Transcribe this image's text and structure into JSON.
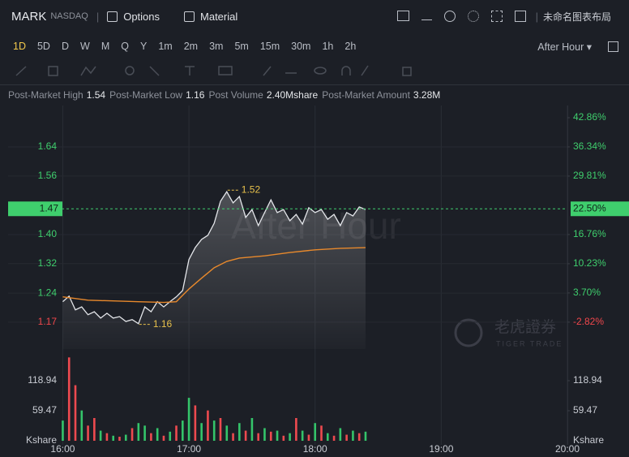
{
  "header": {
    "symbol": "MARK",
    "exchange": "NASDAQ",
    "buttons": [
      "Options",
      "Material"
    ],
    "layout_name": "未命名图表布局"
  },
  "toolbar": {
    "timeframes": [
      "1D",
      "5D",
      "D",
      "W",
      "M",
      "Q",
      "Y",
      "1m",
      "2m",
      "3m",
      "5m",
      "15m",
      "30m",
      "1h",
      "2h"
    ],
    "active_index": 0,
    "session": "After Hour"
  },
  "stats": [
    {
      "label": "Post-Market High",
      "value": 1.54
    },
    {
      "label": "Post-Market Low",
      "value": 1.16
    },
    {
      "label": "Post Volume",
      "value": "2.40Mshare"
    },
    {
      "label": "Post-Market Amount",
      "value": "3.28M"
    }
  ],
  "chart_data": {
    "type": "line",
    "watermark": "After Hour",
    "brand": "老虎證券",
    "brand_sub": "TIGER TRADE",
    "xlim": [
      -26,
      240
    ],
    "xticks": [
      {
        "value": 0,
        "label": "16:00"
      },
      {
        "value": 60,
        "label": "17:00"
      },
      {
        "value": 120,
        "label": "18:00"
      },
      {
        "value": 180,
        "label": "19:00"
      },
      {
        "value": 240,
        "label": "20:00"
      }
    ],
    "ylim": [
      1.094,
      1.747
    ],
    "yticks": [
      {
        "value": 1.636,
        "label": "1.64"
      },
      {
        "value": 1.558,
        "label": "1.56"
      },
      {
        "value": 1.401,
        "label": "1.40"
      },
      {
        "value": 1.323,
        "label": "1.32"
      },
      {
        "value": 1.244,
        "label": "1.24"
      },
      {
        "value": 1.166,
        "label": "1.17"
      }
    ],
    "y2lim": [
      -8.83,
      45.58
    ],
    "y2ticks": [
      {
        "value": 42.86,
        "label": "42.86%"
      },
      {
        "value": 36.34,
        "label": "36.34%"
      },
      {
        "value": 29.81,
        "label": "29.81%"
      },
      {
        "value": 16.76,
        "label": "16.76%"
      },
      {
        "value": 10.23,
        "label": "10.23%"
      },
      {
        "value": 3.7,
        "label": "3.70%"
      },
      {
        "value": -2.82,
        "label": "-2.82%"
      }
    ],
    "grid": true,
    "last_price": 1.47,
    "last_change": {
      "value": 22.5,
      "label": "22.50%"
    },
    "annotations": [
      {
        "x": 78,
        "value": 1.52
      },
      {
        "x": 36,
        "value": 1.16
      }
    ],
    "series": [
      {
        "color": "#e4e6ea",
        "x": [
          0,
          3,
          6,
          9,
          12,
          15,
          18,
          21,
          24,
          27,
          30,
          33,
          36,
          39,
          42,
          45,
          48,
          51,
          54,
          57,
          60,
          63,
          66,
          69,
          72,
          75,
          78,
          81,
          84,
          87,
          90,
          93,
          96,
          99,
          102,
          105,
          108,
          111,
          114,
          117,
          120,
          123,
          126,
          129,
          132,
          135,
          138,
          141,
          144
        ],
        "values": [
          1.221,
          1.236,
          1.199,
          1.207,
          1.186,
          1.194,
          1.177,
          1.19,
          1.177,
          1.181,
          1.168,
          1.173,
          1.162,
          1.207,
          1.194,
          1.221,
          1.207,
          1.221,
          1.234,
          1.251,
          1.334,
          1.366,
          1.388,
          1.399,
          1.431,
          1.49,
          1.516,
          1.486,
          1.503,
          1.447,
          1.468,
          1.425,
          1.46,
          1.494,
          1.46,
          1.468,
          1.438,
          1.455,
          1.429,
          1.473,
          1.46,
          1.468,
          1.442,
          1.455,
          1.425,
          1.46,
          1.451,
          1.475,
          1.468
        ]
      },
      {
        "color": "#e8892c",
        "x": [
          0,
          12,
          24,
          36,
          48,
          54,
          60,
          66,
          72,
          78,
          84,
          96,
          108,
          120,
          132,
          144
        ],
        "values": [
          1.234,
          1.225,
          1.223,
          1.221,
          1.219,
          1.221,
          1.255,
          1.284,
          1.312,
          1.329,
          1.338,
          1.344,
          1.353,
          1.36,
          1.364,
          1.366
        ]
      }
    ],
    "volume": {
      "ylim": [
        0,
        165.5
      ],
      "yticks": [
        59.47,
        118.94
      ],
      "unit": "Kshare",
      "series": [
        {
          "color": "#34c46a",
          "x": [
            0,
            9,
            18,
            24,
            30,
            36,
            39,
            45,
            51,
            57,
            60,
            66,
            72,
            78,
            84,
            90,
            96,
            102,
            108,
            114,
            120,
            126,
            132,
            138,
            144
          ],
          "values": [
            40,
            60,
            20,
            10,
            12,
            35,
            30,
            25,
            18,
            40,
            85,
            35,
            40,
            30,
            35,
            45,
            25,
            20,
            15,
            20,
            35,
            15,
            25,
            20,
            18
          ]
        },
        {
          "color": "#ee4a4f",
          "x": [
            3,
            6,
            12,
            15,
            21,
            27,
            33,
            42,
            48,
            54,
            63,
            69,
            75,
            81,
            87,
            93,
            99,
            105,
            111,
            117,
            123,
            129,
            135,
            141
          ],
          "values": [
            165,
            110,
            30,
            45,
            15,
            8,
            25,
            15,
            10,
            30,
            70,
            60,
            45,
            15,
            20,
            15,
            18,
            10,
            45,
            12,
            30,
            10,
            12,
            15
          ]
        }
      ]
    }
  }
}
